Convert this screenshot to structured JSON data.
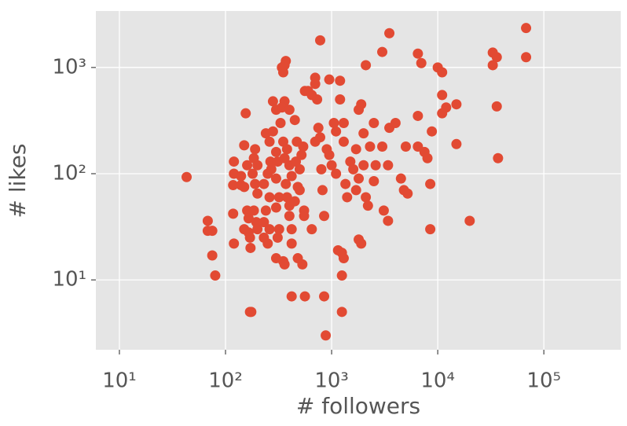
{
  "chart_data": {
    "type": "scatter",
    "xlabel": "# followers",
    "ylabel": "# likes",
    "log_x": true,
    "log_y": true,
    "grid": true,
    "color": "#e24a33",
    "xlim": [
      6,
      530000
    ],
    "ylim": [
      2.2,
      3400
    ],
    "xticks": [
      {
        "value": 10,
        "label": "10¹"
      },
      {
        "value": 100,
        "label": "10²"
      },
      {
        "value": 1000,
        "label": "10³"
      },
      {
        "value": 10000,
        "label": "10⁴"
      },
      {
        "value": 100000,
        "label": "10⁵"
      }
    ],
    "yticks": [
      {
        "value": 10,
        "label": "10¹"
      },
      {
        "value": 100,
        "label": "10²"
      },
      {
        "value": 1000,
        "label": "10³"
      }
    ],
    "x": [
      43,
      68,
      68,
      75,
      75,
      80,
      120,
      120,
      118,
      118,
      120,
      150,
      155,
      160,
      140,
      140,
      150,
      160,
      165,
      150,
      165,
      170,
      172,
      170,
      175,
      180,
      185,
      190,
      185,
      195,
      200,
      200,
      190,
      200,
      240,
      260,
      265,
      270,
      250,
      230,
      260,
      240,
      230,
      230,
      250,
      260,
      280,
      300,
      280,
      300,
      310,
      300,
      320,
      300,
      320,
      310,
      300,
      340,
      350,
      370,
      360,
      360,
      340,
      400,
      330,
      350,
      380,
      360,
      400,
      420,
      370,
      380,
      400,
      400,
      420,
      350,
      360,
      420,
      450,
      500,
      480,
      450,
      460,
      470,
      530,
      560,
      560,
      540,
      520,
      500,
      550,
      480,
      420,
      650,
      550,
      600,
      700,
      700,
      730,
      780,
      650,
      750,
      780,
      700,
      800,
      820,
      850,
      880,
      850,
      900,
      950,
      950,
      1000,
      1050,
      1100,
      1100,
      1150,
      1250,
      1300,
      1250,
      1250,
      1200,
      1200,
      1300,
      1300,
      1350,
      1400,
      1500,
      1600,
      1700,
      1800,
      1900,
      2000,
      2000,
      1800,
      1700,
      1800,
      1900,
      2100,
      2100,
      2200,
      2300,
      2500,
      2500,
      2600,
      3000,
      3500,
      3000,
      3100,
      3400,
      3500,
      3400,
      4000,
      4500,
      4800,
      5000,
      5200,
      6500,
      6500,
      6500,
      7000,
      7500,
      8000,
      8500,
      8500,
      8800,
      10000,
      11000,
      11000,
      11000,
      12000,
      15000,
      15000,
      20000,
      33000,
      33000,
      36000,
      36000,
      37000,
      68000,
      68000
    ],
    "values": [
      93,
      36,
      29,
      29,
      17,
      11,
      130,
      100,
      78,
      42,
      22,
      185,
      370,
      120,
      95,
      78,
      75,
      45,
      38,
      30,
      28,
      25,
      20,
      5,
      5,
      100,
      140,
      80,
      45,
      35,
      30,
      65,
      170,
      120,
      240,
      200,
      130,
      110,
      100,
      80,
      60,
      45,
      35,
      25,
      22,
      30,
      480,
      400,
      250,
      160,
      130,
      90,
      60,
      48,
      30,
      25,
      16,
      1000,
      900,
      1150,
      1050,
      480,
      420,
      400,
      300,
      200,
      170,
      140,
      120,
      95,
      80,
      60,
      50,
      40,
      30,
      15,
      14,
      7,
      320,
      110,
      75,
      55,
      130,
      200,
      14,
      7,
      600,
      180,
      150,
      70,
      45,
      16,
      22,
      30,
      40,
      600,
      800,
      700,
      500,
      1800,
      550,
      270,
      220,
      200,
      110,
      70,
      40,
      3,
      7,
      170,
      770,
      150,
      120,
      300,
      250,
      100,
      19,
      18,
      16,
      11,
      5,
      750,
      500,
      300,
      200,
      80,
      60,
      130,
      110,
      170,
      400,
      450,
      240,
      120,
      90,
      70,
      24,
      22,
      1050,
      60,
      50,
      180,
      85,
      300,
      120,
      1400,
      2100,
      180,
      45,
      120,
      270,
      36,
      300,
      90,
      70,
      180,
      65,
      1350,
      350,
      180,
      1100,
      160,
      140,
      30,
      80,
      250,
      1000,
      900,
      550,
      370,
      420,
      450,
      190,
      36,
      1050,
      1380,
      1250,
      430,
      140,
      2350,
      1250
    ]
  }
}
